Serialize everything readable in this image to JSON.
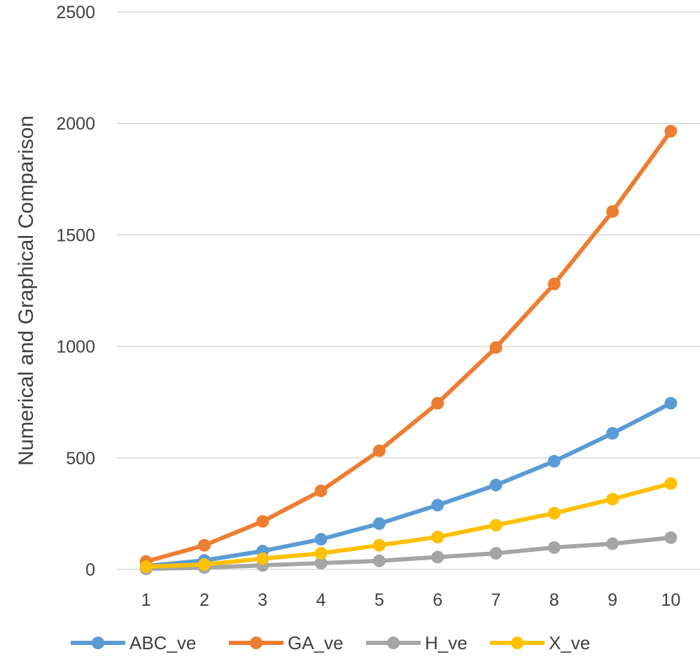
{
  "chart_data": {
    "type": "line",
    "title": "",
    "xlabel": "",
    "ylabel": "Numerical and Graphical Comparison",
    "x": [
      1,
      2,
      3,
      4,
      5,
      6,
      7,
      8,
      9,
      10
    ],
    "xlim": [
      0.5,
      10.5
    ],
    "ylim": [
      0,
      2500
    ],
    "yticks": [
      0,
      500,
      1000,
      1500,
      2000,
      2500
    ],
    "grid": "horizontal",
    "legend_position": "bottom",
    "series": [
      {
        "name": "ABC_ve",
        "color": "#5b9bd5",
        "values": [
          15,
          40,
          82,
          135,
          205,
          288,
          378,
          485,
          610,
          745
        ]
      },
      {
        "name": "GA_ve",
        "color": "#ed7d31",
        "values": [
          35,
          108,
          215,
          352,
          532,
          745,
          995,
          1280,
          1605,
          1965
        ]
      },
      {
        "name": "H_ve",
        "color": "#a5a5a5",
        "values": [
          2,
          8,
          18,
          28,
          38,
          55,
          72,
          98,
          115,
          142
        ]
      },
      {
        "name": "X_ve",
        "color": "#ffc000",
        "values": [
          12,
          22,
          48,
          72,
          108,
          145,
          198,
          252,
          315,
          385
        ]
      }
    ]
  }
}
